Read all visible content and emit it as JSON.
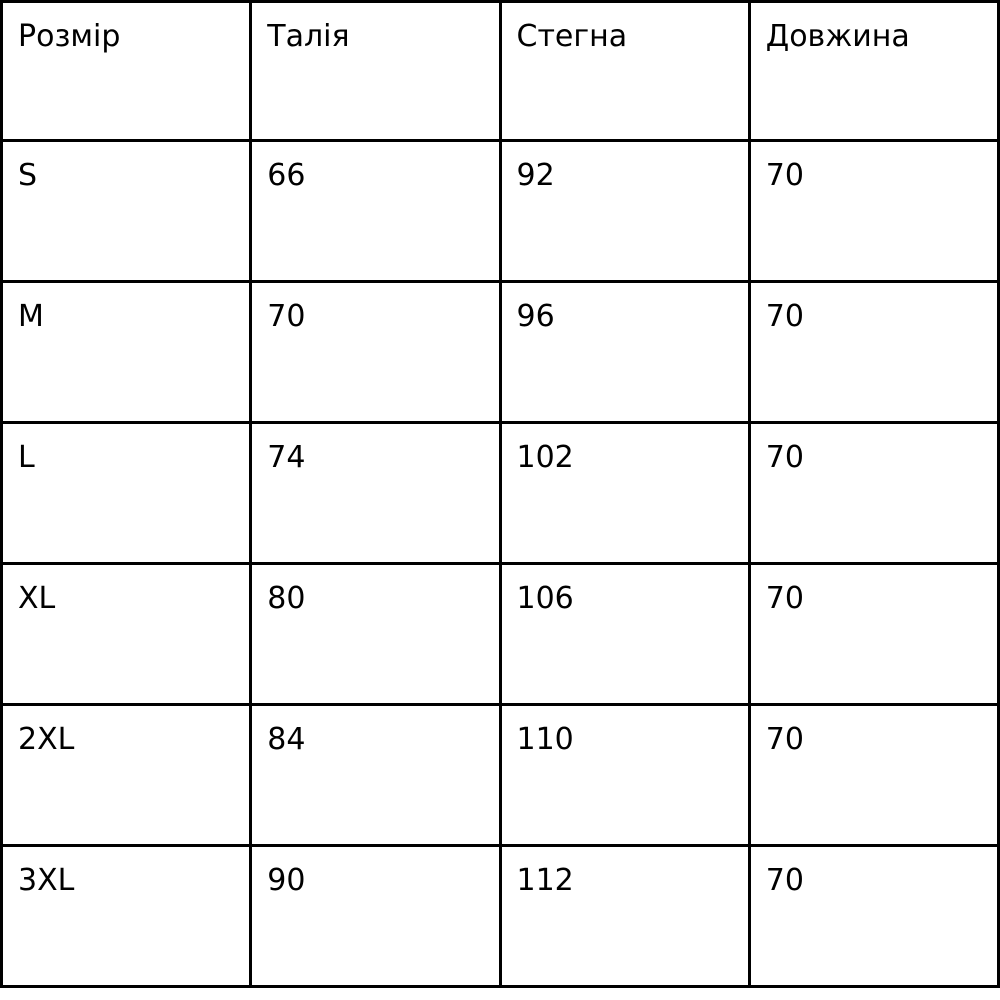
{
  "table": {
    "headers": [
      "Розмір",
      "Талія",
      "Стегна",
      "Довжина"
    ],
    "rows": [
      [
        "S",
        "66",
        "92",
        "70"
      ],
      [
        "M",
        "70",
        "96",
        "70"
      ],
      [
        "L",
        "74",
        "102",
        "70"
      ],
      [
        "XL",
        "80",
        "106",
        "70"
      ],
      [
        "2XL",
        "84",
        "110",
        "70"
      ],
      [
        "3XL",
        "90",
        "112",
        "70"
      ]
    ]
  },
  "chart_data": {
    "type": "table",
    "title": "",
    "columns": [
      "Розмір",
      "Талія",
      "Стегна",
      "Довжина"
    ],
    "rows": [
      {
        "size": "S",
        "waist": 66,
        "hips": 92,
        "length": 70
      },
      {
        "size": "M",
        "waist": 70,
        "hips": 96,
        "length": 70
      },
      {
        "size": "L",
        "waist": 74,
        "hips": 102,
        "length": 70
      },
      {
        "size": "XL",
        "waist": 80,
        "hips": 106,
        "length": 70
      },
      {
        "size": "2XL",
        "waist": 84,
        "hips": 110,
        "length": 70
      },
      {
        "size": "3XL",
        "waist": 90,
        "hips": 112,
        "length": 70
      }
    ]
  },
  "colors": {
    "border": "#000000",
    "background": "#ffffff",
    "text": "#000000"
  }
}
